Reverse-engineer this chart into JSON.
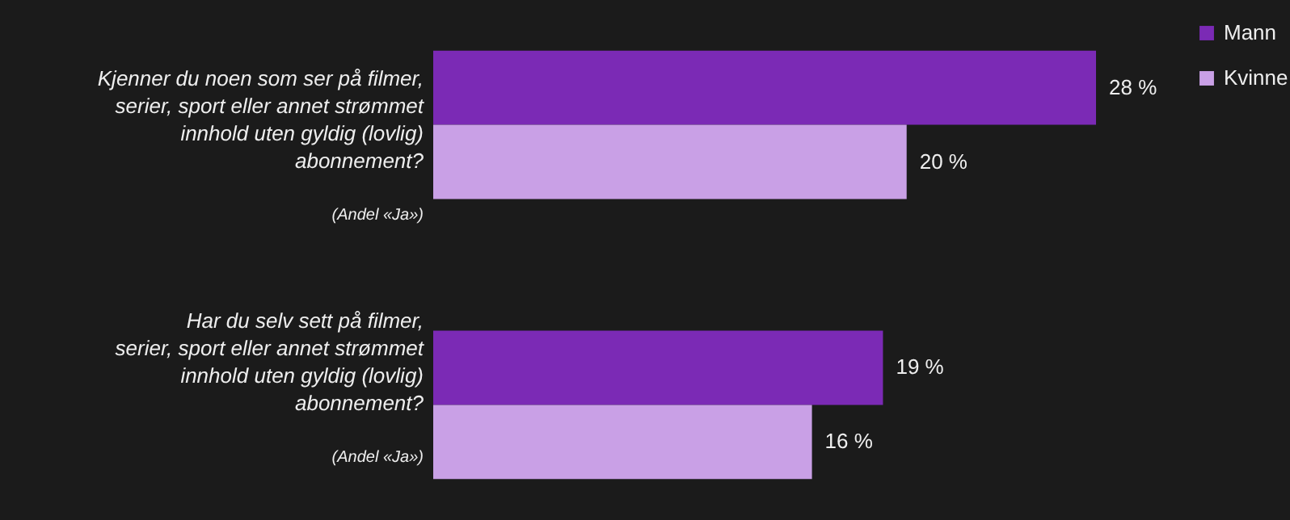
{
  "chart_data": {
    "type": "bar",
    "orientation": "horizontal",
    "categories": [
      "Kjenner du noen som ser på filmer, serier, sport eller annet strømmet innhold uten gyldig (lovlig) abonnement?",
      "Har du selv sett på filmer, serier, sport eller annet strømmet innhold uten gyldig (lovlig) abonnement?"
    ],
    "series": [
      {
        "name": "Mann",
        "color": "#7b2ab5",
        "values": [
          28,
          19
        ],
        "value_labels": [
          "28 %",
          "19 %"
        ]
      },
      {
        "name": "Kvinne",
        "color": "#c9a0e6",
        "values": [
          20,
          16
        ],
        "value_labels": [
          "20 %",
          "16 %"
        ]
      }
    ],
    "annotations": [
      "(Andel «Ja»)",
      "(Andel «Ja»)"
    ],
    "legend": "right"
  }
}
